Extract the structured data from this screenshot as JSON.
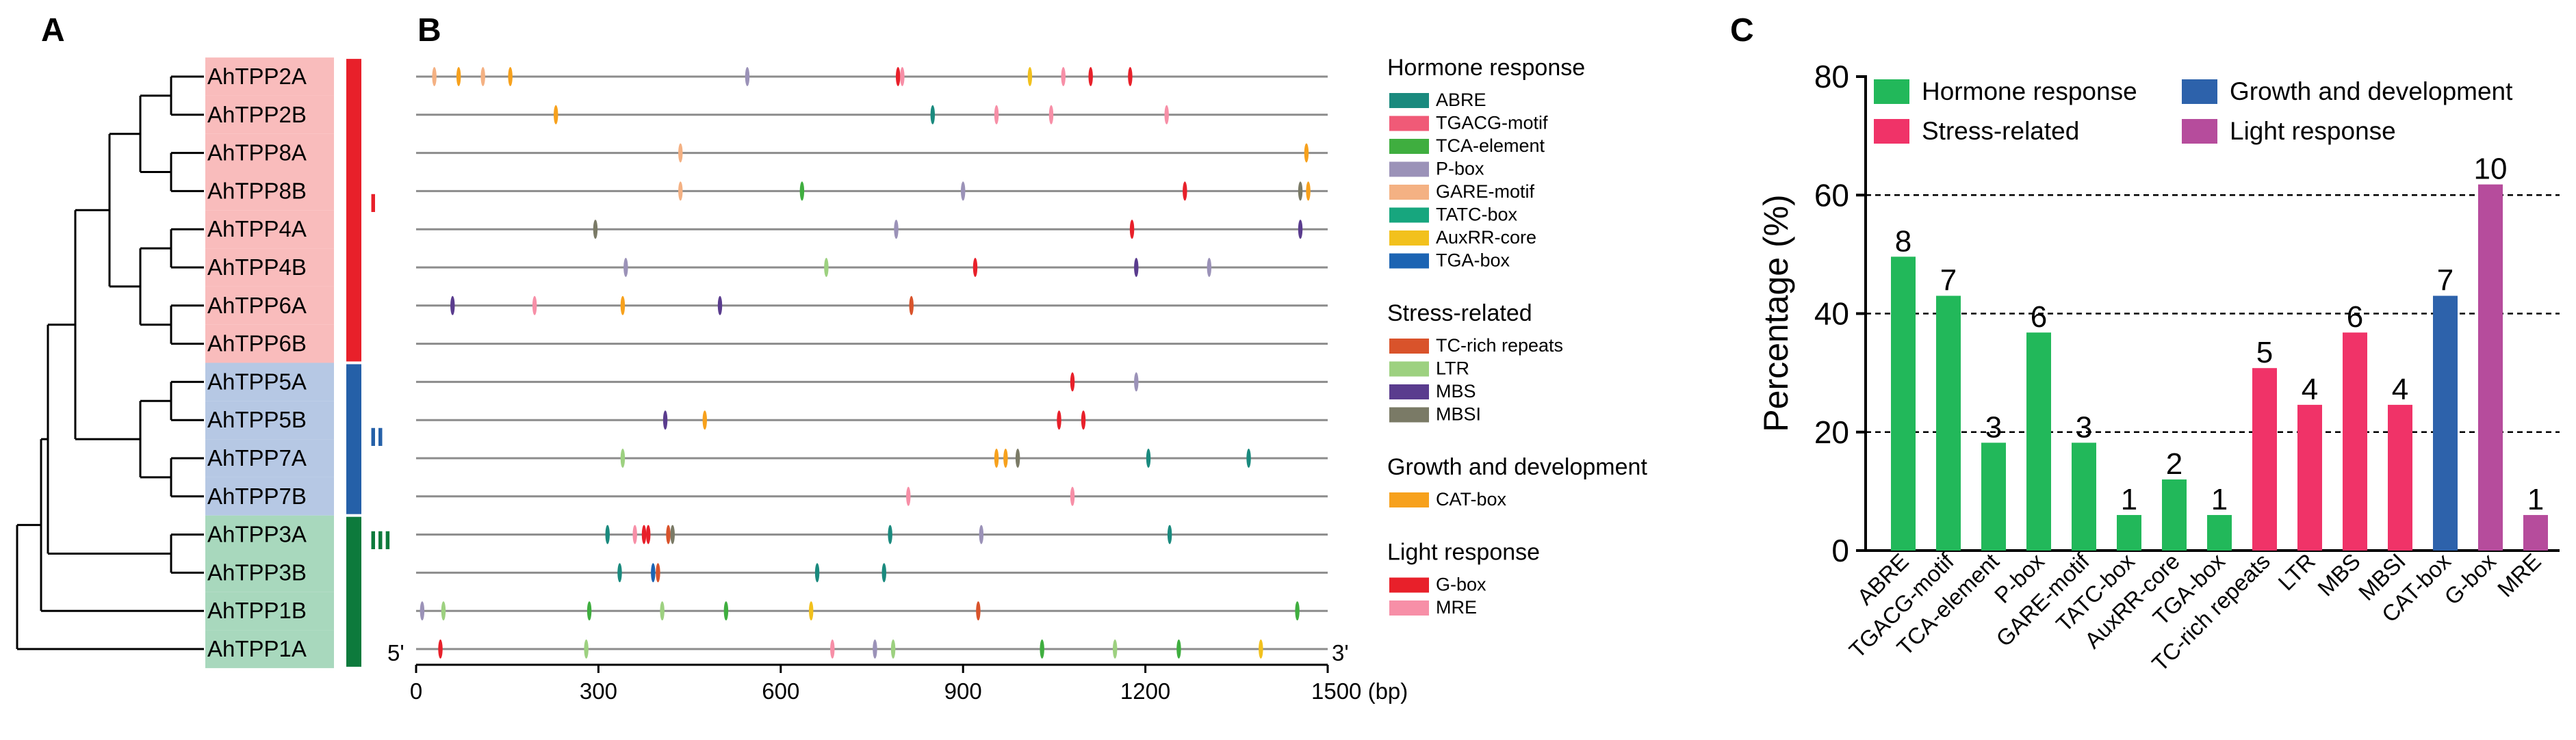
{
  "panels": {
    "a": "A",
    "b": "B",
    "c": "C"
  },
  "colors": {
    "ABRE": "#1a8a7e",
    "TGACG-motif": "#f05a77",
    "TCA-element": "#3fae3f",
    "P-box": "#9b92b8",
    "GARE-motif": "#f4b183",
    "TATC-box": "#17a67e",
    "AuxRR-core": "#f2c11d",
    "TGA-box": "#1c64b3",
    "TC-rich repeats": "#d9532b",
    "LTR": "#9dd180",
    "MBS": "#5a3c8e",
    "MBSI": "#7a7a66",
    "CAT-box": "#f7a11c",
    "G-box": "#e8202a",
    "MRE": "#f78fa7",
    "hormone": "#22b85a",
    "stress": "#f03368",
    "growth": "#2d62ab",
    "light": "#b64c9c",
    "groupI_bar": "#e8202a",
    "groupII_bar": "#2560a8",
    "groupIII_bar": "#0d7a3c",
    "groupI_bg": "#f9bcbc",
    "groupII_bg": "#b6c8e4",
    "groupIII_bg": "#a8d8bd"
  },
  "tree": {
    "genes": [
      "AhTPP2A",
      "AhTPP2B",
      "AhTPP8A",
      "AhTPP8B",
      "AhTPP4A",
      "AhTPP4B",
      "AhTPP6A",
      "AhTPP6B",
      "AhTPP5A",
      "AhTPP5B",
      "AhTPP7A",
      "AhTPP7B",
      "AhTPP3A",
      "AhTPP3B",
      "AhTPP1B",
      "AhTPP1A"
    ],
    "groups": [
      {
        "label": "I",
        "start": 0,
        "end": 7
      },
      {
        "label": "II",
        "start": 8,
        "end": 11
      },
      {
        "label": "III",
        "start": 12,
        "end": 15
      }
    ]
  },
  "promoter": {
    "length_bp": 1500,
    "end5": "5'",
    "end3": "3'",
    "axis_ticks": [
      "0",
      "300",
      "600",
      "900",
      "1200",
      "1500 (bp)"
    ],
    "elements": [
      [
        [
          "GARE-motif",
          30
        ],
        [
          "CAT-box",
          70
        ],
        [
          "GARE-motif",
          110
        ],
        [
          "CAT-box",
          155
        ],
        [
          "P-box",
          545
        ],
        [
          "G-box",
          793
        ],
        [
          "MRE",
          800
        ],
        [
          "AuxRR-core",
          1010
        ],
        [
          "MRE",
          1065
        ],
        [
          "G-box",
          1110
        ],
        [
          "G-box",
          1175
        ]
      ],
      [
        [
          "CAT-box",
          230
        ],
        [
          "ABRE",
          850
        ],
        [
          "MRE",
          955
        ],
        [
          "MRE",
          1045
        ],
        [
          "MRE",
          1235
        ]
      ],
      [
        [
          "GARE-motif",
          435
        ],
        [
          "CAT-box",
          1465
        ]
      ],
      [
        [
          "GARE-motif",
          435
        ],
        [
          "TCA-element",
          635
        ],
        [
          "P-box",
          900
        ],
        [
          "G-box",
          1265
        ],
        [
          "MBSI",
          1455
        ],
        [
          "CAT-box",
          1468
        ]
      ],
      [
        [
          "MBSI",
          295
        ],
        [
          "P-box",
          790
        ],
        [
          "G-box",
          1178
        ],
        [
          "MBS",
          1455
        ]
      ],
      [
        [
          "P-box",
          345
        ],
        [
          "LTR",
          675
        ],
        [
          "G-box",
          920
        ],
        [
          "MBS",
          1185
        ],
        [
          "P-box",
          1305
        ]
      ],
      [
        [
          "MBS",
          60
        ],
        [
          "MRE",
          195
        ],
        [
          "CAT-box",
          340
        ],
        [
          "MBS",
          500
        ],
        [
          "TC-rich repeats",
          815
        ]
      ],
      [],
      [
        [
          "G-box",
          1080
        ],
        [
          "P-box",
          1185
        ]
      ],
      [
        [
          "MBS",
          410
        ],
        [
          "CAT-box",
          475
        ],
        [
          "G-box",
          1058
        ],
        [
          "G-box",
          1098
        ]
      ],
      [
        [
          "LTR",
          340
        ],
        [
          "CAT-box",
          955
        ],
        [
          "CAT-box",
          970
        ],
        [
          "MBSI",
          990
        ],
        [
          "ABRE",
          1205
        ],
        [
          "ABRE",
          1370
        ]
      ],
      [
        [
          "MRE",
          810
        ],
        [
          "MRE",
          1080
        ]
      ],
      [
        [
          "ABRE",
          315
        ],
        [
          "MRE",
          360
        ],
        [
          "G-box",
          375
        ],
        [
          "G-box",
          382
        ],
        [
          "TC-rich repeats",
          415
        ],
        [
          "MBSI",
          422
        ],
        [
          "ABRE",
          780
        ],
        [
          "P-box",
          930
        ],
        [
          "ABRE",
          1240
        ]
      ],
      [
        [
          "ABRE",
          335
        ],
        [
          "TGA-box",
          390
        ],
        [
          "TC-rich repeats",
          398
        ],
        [
          "ABRE",
          660
        ],
        [
          "ABRE",
          770
        ]
      ],
      [
        [
          "P-box",
          10
        ],
        [
          "LTR",
          45
        ],
        [
          "TCA-element",
          285
        ],
        [
          "LTR",
          405
        ],
        [
          "TCA-element",
          510
        ],
        [
          "AuxRR-core",
          650
        ],
        [
          "TC-rich repeats",
          925
        ],
        [
          "TCA-element",
          1450
        ]
      ],
      [
        [
          "G-box",
          40
        ],
        [
          "LTR",
          280
        ],
        [
          "MRE",
          685
        ],
        [
          "P-box",
          755
        ],
        [
          "LTR",
          785
        ],
        [
          "TCA-element",
          1030
        ],
        [
          "LTR",
          1150
        ],
        [
          "TCA-element",
          1255
        ],
        [
          "AuxRR-core",
          1390
        ]
      ]
    ]
  },
  "legend_b": [
    {
      "heading": "Hormone response",
      "items": [
        "ABRE",
        "TGACG-motif",
        "TCA-element",
        "P-box",
        "GARE-motif",
        "TATC-box",
        "AuxRR-core",
        "TGA-box"
      ]
    },
    {
      "heading": "Stress-related",
      "items": [
        "TC-rich repeats",
        "LTR",
        "MBS",
        "MBSI"
      ]
    },
    {
      "heading": "Growth and development",
      "items": [
        "CAT-box"
      ]
    },
    {
      "heading": "Light response",
      "items": [
        "G-box",
        "MRE"
      ]
    }
  ],
  "chart_data": {
    "type": "bar",
    "ylabel": "Percentage (%)",
    "ylim": [
      0,
      80
    ],
    "yticks": [
      0,
      20,
      40,
      60,
      80
    ],
    "grid": "dashed lines at 20, 40, 60",
    "categories": [
      "ABRE",
      "TGACG-motif",
      "TCA-element",
      "P-box",
      "GARE-motif",
      "TATC-box",
      "AuxRR-core",
      "TGA-box",
      "TC-rich repeats",
      "LTR",
      "MBS",
      "MBSI",
      "CAT-box",
      "G-box",
      "MRE"
    ],
    "values": [
      49.6,
      43,
      18.2,
      36.8,
      18.2,
      6,
      12,
      6,
      30.8,
      24.6,
      36.8,
      24.6,
      43,
      61.8,
      6
    ],
    "labels": [
      "8",
      "7",
      "3",
      "6",
      "3",
      "1",
      "2",
      "1",
      "5",
      "4",
      "6",
      "4",
      "7",
      "10",
      "1"
    ],
    "groups": [
      "hormone",
      "hormone",
      "hormone",
      "hormone",
      "hormone",
      "hormone",
      "hormone",
      "hormone",
      "stress",
      "stress",
      "stress",
      "stress",
      "growth",
      "light",
      "light"
    ],
    "legend": [
      {
        "key": "hormone",
        "label": "Hormone response"
      },
      {
        "key": "growth",
        "label": "Growth and development"
      },
      {
        "key": "stress",
        "label": "Stress-related"
      },
      {
        "key": "light",
        "label": "Light response"
      }
    ]
  }
}
